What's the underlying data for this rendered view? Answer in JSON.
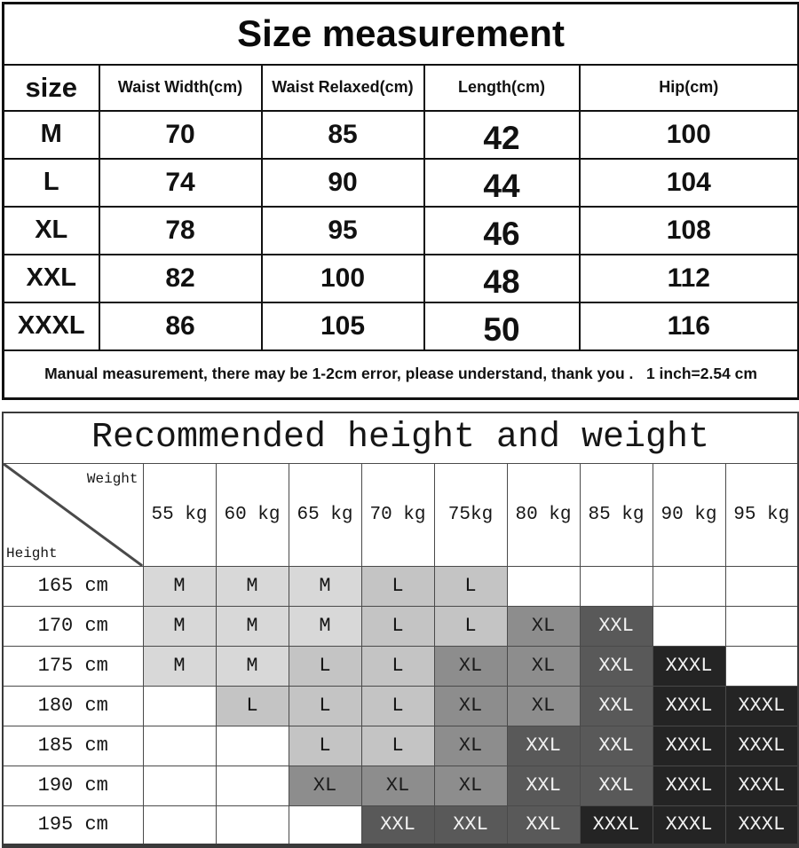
{
  "chart_data": [
    {
      "type": "table",
      "title": "Size measurement",
      "columns": [
        "size",
        "Waist Width(cm)",
        "Waist Relaxed(cm)",
        "Length(cm)",
        "Hip(cm)"
      ],
      "rows": [
        [
          "M",
          "70",
          "85",
          "42",
          "100"
        ],
        [
          "L",
          "74",
          "90",
          "44",
          "104"
        ],
        [
          "XL",
          "78",
          "95",
          "46",
          "108"
        ],
        [
          "XXL",
          "82",
          "100",
          "48",
          "112"
        ],
        [
          "XXXL",
          "86",
          "105",
          "50",
          "116"
        ]
      ],
      "note": "Manual measurement, there may be 1-2cm error, please understand, thank you .   1 inch=2.54 cm"
    },
    {
      "type": "heatmap",
      "title": "Recommended height and weight",
      "corner": {
        "row_label": "Height",
        "col_label": "Weight"
      },
      "col_headers": [
        "55 kg",
        "60 kg",
        "65 kg",
        "70 kg",
        "75kg",
        "80 kg",
        "85 kg",
        "90 kg",
        "95 kg"
      ],
      "row_headers": [
        "165 cm",
        "170 cm",
        "175 cm",
        "180 cm",
        "185 cm",
        "190 cm",
        "195 cm"
      ],
      "matrix": [
        [
          "M",
          "M",
          "M",
          "L",
          "L",
          "",
          "",
          "",
          ""
        ],
        [
          "M",
          "M",
          "M",
          "L",
          "L",
          "XL",
          "XXL",
          "",
          ""
        ],
        [
          "M",
          "M",
          "L",
          "L",
          "XL",
          "XL",
          "XXL",
          "XXXL",
          ""
        ],
        [
          "",
          "L",
          "L",
          "L",
          "XL",
          "XL",
          "XXL",
          "XXXL",
          "XXXL"
        ],
        [
          "",
          "",
          "L",
          "L",
          "XL",
          "XXL",
          "XXL",
          "XXXL",
          "XXXL"
        ],
        [
          "",
          "",
          "XL",
          "XL",
          "XL",
          "XXL",
          "XXL",
          "XXXL",
          "XXXL"
        ],
        [
          "",
          "",
          "",
          "XXL",
          "XXL",
          "XXL",
          "XXXL",
          "XXXL",
          "XXXL"
        ]
      ],
      "legend_colors": {
        "M": {
          "bg": "#d8d8d8",
          "text": "#141414"
        },
        "L": {
          "bg": "#c4c4c4",
          "text": "#141414"
        },
        "XL": {
          "bg": "#8d8d8d",
          "text": "#1c1c1c"
        },
        "XXL": {
          "bg": "#595959",
          "text": "#f2f2f2"
        },
        "XXXL": {
          "bg": "#242424",
          "text": "#f2f2f2"
        }
      }
    }
  ]
}
